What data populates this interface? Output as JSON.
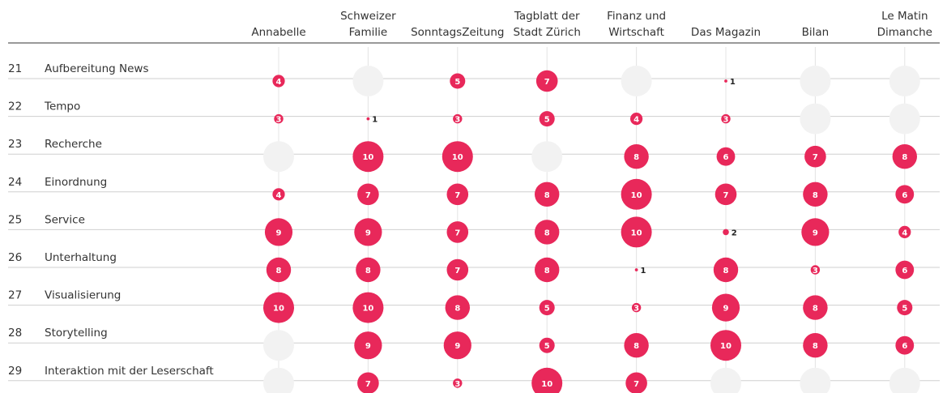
{
  "type": "bubble_matrix",
  "color": "#e8285a",
  "empty_color": "#f2f2f2",
  "columns": [
    [
      "Annabelle"
    ],
    [
      "Schweizer",
      "Familie"
    ],
    [
      "SonntagsZeitung"
    ],
    [
      "Tagblatt der",
      "Stadt Zürich"
    ],
    [
      "Finanz und",
      "Wirtschaft"
    ],
    [
      "Das Magazin"
    ],
    [
      "Bilan"
    ],
    [
      "Le Matin",
      "Dimanche"
    ]
  ],
  "rows": [
    {
      "number": "21",
      "label": "Aufbereitung News",
      "values": [
        4,
        null,
        5,
        7,
        null,
        1,
        null,
        null
      ]
    },
    {
      "number": "22",
      "label": "Tempo",
      "values": [
        3,
        1,
        3,
        5,
        4,
        3,
        null,
        null
      ]
    },
    {
      "number": "23",
      "label": "Recherche",
      "values": [
        null,
        10,
        10,
        null,
        8,
        6,
        7,
        8
      ]
    },
    {
      "number": "24",
      "label": "Einordnung",
      "values": [
        4,
        7,
        7,
        8,
        10,
        7,
        8,
        6
      ]
    },
    {
      "number": "25",
      "label": "Service",
      "values": [
        9,
        9,
        7,
        8,
        10,
        2,
        9,
        4
      ]
    },
    {
      "number": "26",
      "label": "Unterhaltung",
      "values": [
        8,
        8,
        7,
        8,
        1,
        8,
        3,
        6
      ]
    },
    {
      "number": "27",
      "label": "Visualisierung",
      "values": [
        10,
        10,
        8,
        5,
        3,
        9,
        8,
        5
      ]
    },
    {
      "number": "28",
      "label": "Storytelling",
      "values": [
        null,
        9,
        9,
        5,
        8,
        10,
        8,
        6
      ]
    },
    {
      "number": "29",
      "label": "Interaktion mit der Leserschaft",
      "values": [
        null,
        7,
        3,
        10,
        7,
        null,
        null,
        null
      ]
    }
  ]
}
